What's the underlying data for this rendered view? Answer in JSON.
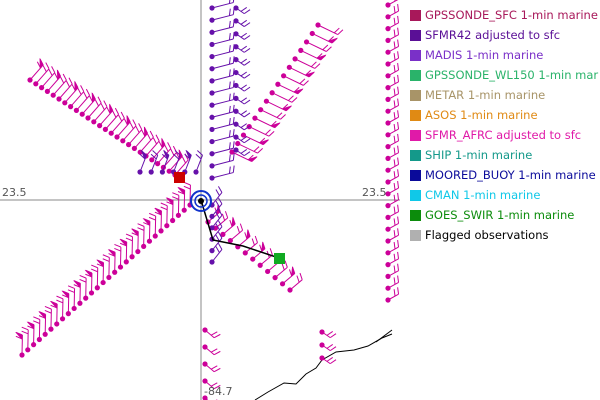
{
  "map": {
    "axis_labels": {
      "lat_left": "23.5",
      "lat_right": "23.5",
      "lon_bottom": "-84.7"
    },
    "colors": {
      "sfmr_afrc": "#cc0099",
      "sfmr42": "#6611aa",
      "center_circle": "#1133cc",
      "track": "#000000",
      "coastline": "#000000",
      "gridline": "#888888",
      "sfc_marker": "#cc0000",
      "endpoint_marker": "#11aa22"
    }
  },
  "legend": {
    "items": [
      {
        "label": "GPSSONDE_SFC 1-min marine",
        "color": "#a8185a",
        "text_color": "#a8185a"
      },
      {
        "label": "SFMR42 adjusted to sfc",
        "color": "#5a0f96",
        "text_color": "#5a0f96"
      },
      {
        "label": "MADIS 1-min marine",
        "color": "#7a30c8",
        "text_color": "#7a30c8"
      },
      {
        "label": "GPSSONDE_WL150 1-min mar",
        "color": "#2ab36a",
        "text_color": "#2ab36a"
      },
      {
        "label": "METAR 1-min marine",
        "color": "#a89468",
        "text_color": "#a89468"
      },
      {
        "label": "ASOS 1-min marine",
        "color": "#e08a14",
        "text_color": "#e08a14"
      },
      {
        "label": "SFMR_AFRC adjusted to sfc",
        "color": "#e01aa8",
        "text_color": "#e01aa8"
      },
      {
        "label": "SHIP 1-min marine",
        "color": "#14998a",
        "text_color": "#14998a"
      },
      {
        "label": "MOORED_BUOY 1-min marine",
        "color": "#0a0a9a",
        "text_color": "#0a0a9a"
      },
      {
        "label": "CMAN 1-min marine",
        "color": "#10c8e8",
        "text_color": "#10c8e8"
      },
      {
        "label": "GOES_SWIR 1-min marine",
        "color": "#0c8c0c",
        "text_color": "#0c8c0c"
      },
      {
        "label": "Flagged observations",
        "color": "#b0b0b0",
        "text_color": "#000000"
      }
    ]
  }
}
